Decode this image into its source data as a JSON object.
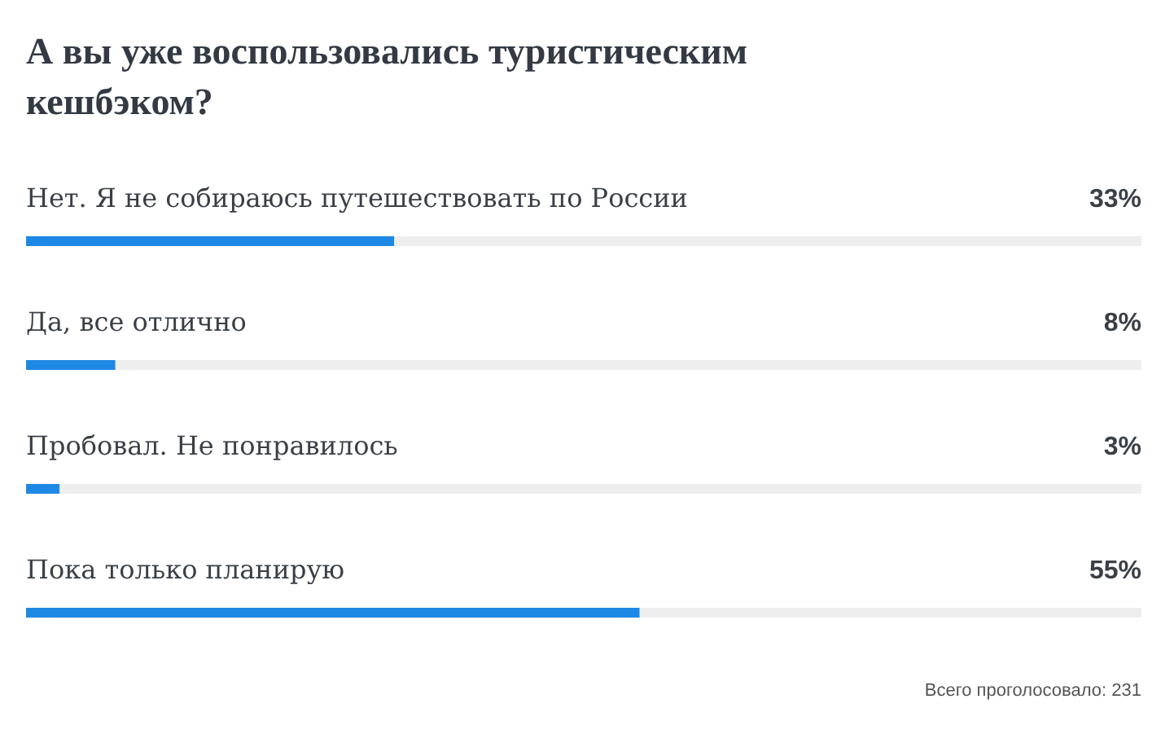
{
  "chart_data": {
    "type": "bar",
    "orientation": "horizontal",
    "title": "А вы уже воспользовались туристическим кешбэком?",
    "categories": [
      "Нет. Я не собираюсь путешествовать по России",
      "Да, все отлично",
      "Пробовал. Не понравилось",
      "Пока только планирую"
    ],
    "values": [
      33,
      8,
      3,
      55
    ],
    "value_labels": [
      "33%",
      "8%",
      "3%",
      "55%"
    ],
    "color": "#1e88e5",
    "xlim": [
      0,
      100
    ],
    "tick_labels": false,
    "annotations": [
      "Всего проголосовало: 231"
    ]
  }
}
